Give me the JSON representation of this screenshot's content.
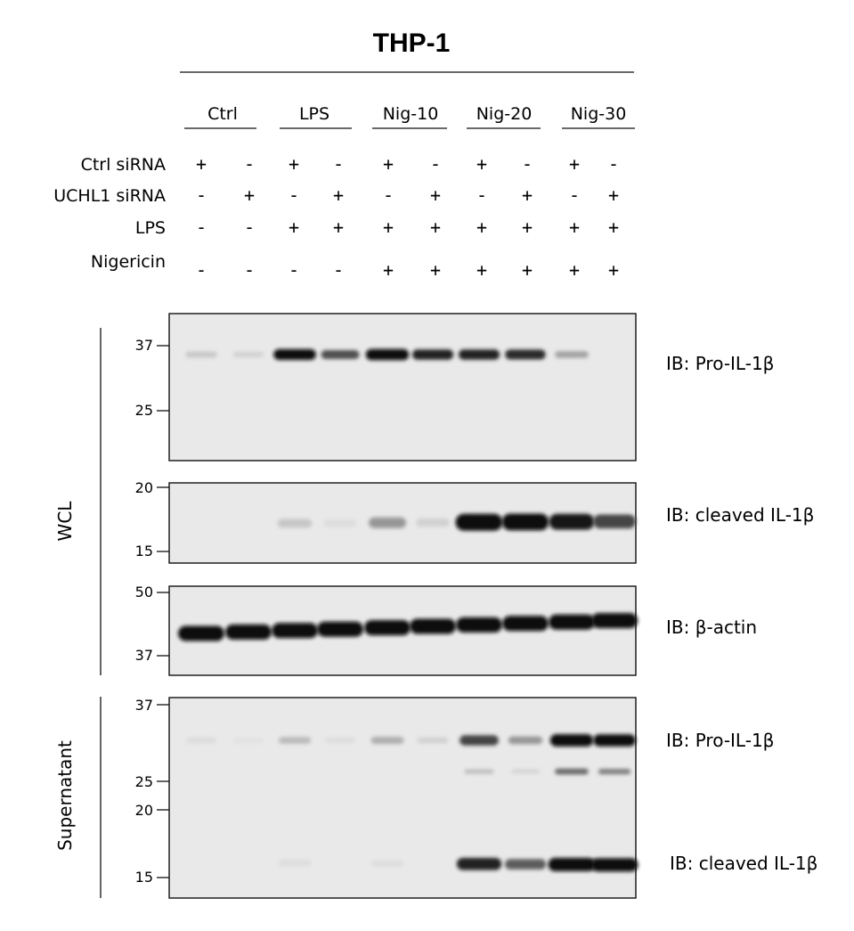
{
  "title": "THP-1",
  "groups": [
    "Ctrl",
    "LPS",
    "Nig-10",
    "Nig-20",
    "Nig-30"
  ],
  "conditions": [
    {
      "label": "Ctrl siRNA",
      "signs": [
        "+",
        "-",
        "+",
        "-",
        "+",
        "-",
        "+",
        "-",
        "+",
        "-"
      ]
    },
    {
      "label": "UCHL1 siRNA",
      "signs": [
        "-",
        "+",
        "-",
        "+",
        "-",
        "+",
        "-",
        "+",
        "-",
        "+"
      ]
    },
    {
      "label": "LPS",
      "signs": [
        "-",
        "-",
        "+",
        "+",
        "+",
        "+",
        "+",
        "+",
        "+",
        "+"
      ]
    },
    {
      "label": "Nigericin",
      "signs": [
        "-",
        "-",
        "-",
        "-",
        "+",
        "+",
        "+",
        "+",
        "+",
        "+"
      ]
    }
  ],
  "sections": [
    {
      "label": "WCL"
    },
    {
      "label": "Supernatant"
    }
  ],
  "blots": [
    {
      "name": "wcl-pro-il1b",
      "markers": [
        "37",
        "25"
      ],
      "labels": [
        "IB: Pro-IL-1β"
      ],
      "band_intensity": [
        [
          0.15,
          0.1,
          0.95,
          0.65,
          1.0,
          0.85,
          0.85,
          0.8,
          0.3,
          0.0
        ]
      ]
    },
    {
      "name": "wcl-cleaved-il1b",
      "markers": [
        "20",
        "15"
      ],
      "labels": [
        "IB: cleaved IL-1β"
      ],
      "band_intensity": [
        [
          0.0,
          0.0,
          0.15,
          0.05,
          0.35,
          0.1,
          1.0,
          1.0,
          0.9,
          0.7
        ]
      ]
    },
    {
      "name": "wcl-beta-actin",
      "markers": [
        "50",
        "37"
      ],
      "labels": [
        "IB: β-actin"
      ],
      "band_intensity": [
        [
          0.95,
          0.95,
          0.95,
          0.95,
          0.95,
          0.95,
          0.95,
          0.95,
          0.95,
          0.95
        ]
      ]
    },
    {
      "name": "supernatant",
      "markers": [
        "37",
        "25",
        "20",
        "15"
      ],
      "labels": [
        "IB: Pro-IL-1β",
        "IB: cleaved IL-1β"
      ],
      "band_intensity": [
        [
          0.06,
          0.03,
          0.2,
          0.05,
          0.25,
          0.1,
          0.7,
          0.35,
          1.0,
          0.95
        ],
        [
          0.0,
          0.0,
          0.0,
          0.0,
          0.0,
          0.0,
          0.2,
          0.1,
          0.55,
          0.45
        ],
        [
          0.0,
          0.0,
          0.05,
          0.0,
          0.05,
          0.0,
          0.85,
          0.6,
          1.0,
          1.0
        ]
      ]
    }
  ]
}
